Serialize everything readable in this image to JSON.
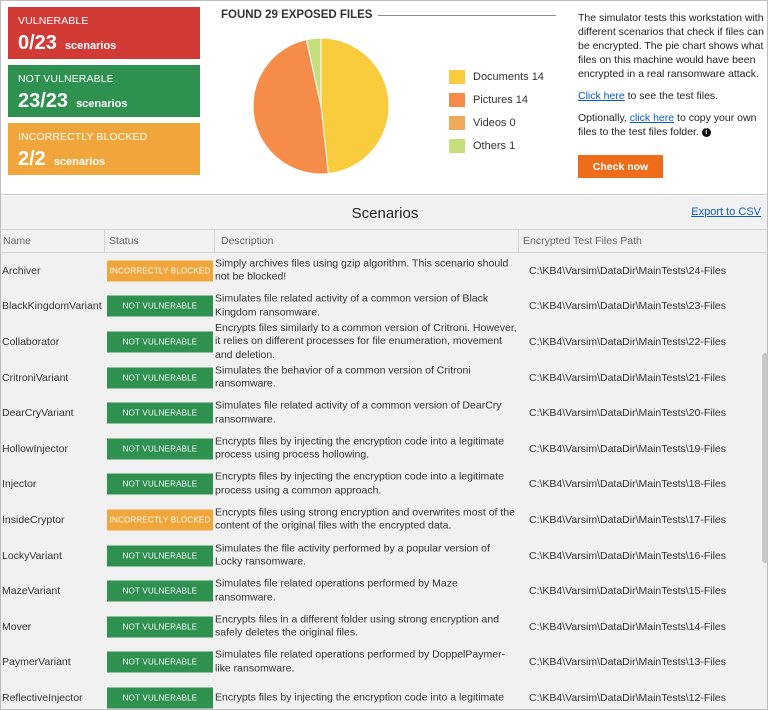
{
  "colors": {
    "vulnerable": "#d23a36",
    "not_vulnerable": "#2e9150",
    "incorrectly_blocked": "#f0a63a",
    "accent_orange": "#ef6c1b",
    "link": "#0a5cc7"
  },
  "summary": {
    "vulnerable": {
      "title": "VULNERABLE",
      "count": "0/23",
      "unit": "scenarios"
    },
    "not_vulnerable": {
      "title": "NOT VULNERABLE",
      "count": "23/23",
      "unit": "scenarios"
    },
    "incorrectly_blocked": {
      "title": "INCORRECTLY BLOCKED",
      "count": "2/2",
      "unit": "scenarios"
    }
  },
  "files_heading": "FOUND 29 EXPOSED FILES",
  "chart_data": {
    "type": "pie",
    "title": "FOUND 29 EXPOSED FILES",
    "slices": [
      {
        "label": "Documents 14",
        "value": 14,
        "color": "#f9cc3e"
      },
      {
        "label": "Pictures 14",
        "value": 14,
        "color": "#f58c4a"
      },
      {
        "label": "Videos 0",
        "value": 0,
        "color": "#f0a85a"
      },
      {
        "label": "Others 1",
        "value": 1,
        "color": "#c5de7c"
      }
    ],
    "legend": "right"
  },
  "info": {
    "description": "The simulator tests this workstation with different scenarios that check if files can be encrypted. The pie chart shows what files on this machine would have been encrypted in a real ransomware attack.",
    "click_here_1": "Click here",
    "see_test_files": " to see the test files.",
    "optionally": "Optionally, ",
    "click_here_2": "click here",
    "copy_files": " to copy your own files to the test files folder.",
    "info_icon": "info-icon",
    "check_now": "Check now"
  },
  "scenarios": {
    "title": "Scenarios",
    "export_label": "Export to CSV",
    "columns": {
      "name": "Name",
      "status": "Status",
      "description": "Description",
      "path": "Encrypted Test Files Path"
    },
    "rows": [
      {
        "name": "Archiver",
        "status": "INCORRECTLY BLOCKED",
        "status_type": "incorrectly_blocked",
        "description": "Simply archives files using gzip algorithm. This scenario should not be blocked!",
        "path": "C:\\KB4\\Varsim\\DataDir\\MainTests\\24-Files"
      },
      {
        "name": "BlackKingdomVariant",
        "status": "NOT VULNERABLE",
        "status_type": "not_vulnerable",
        "description": "Simulates file related activity of a common version of Black Kingdom ransomware.",
        "path": "C:\\KB4\\Varsim\\DataDir\\MainTests\\23-Files"
      },
      {
        "name": "Collaborator",
        "status": "NOT VULNERABLE",
        "status_type": "not_vulnerable",
        "description": "Encrypts files similarly to a common version of Critroni. However, it relies on different processes for file enumeration, movement and deletion.",
        "path": "C:\\KB4\\Varsim\\DataDir\\MainTests\\22-Files"
      },
      {
        "name": "CritroniVariant",
        "status": "NOT VULNERABLE",
        "status_type": "not_vulnerable",
        "description": "Simulates the behavior of a common version of Critroni ransomware.",
        "path": "C:\\KB4\\Varsim\\DataDir\\MainTests\\21-Files"
      },
      {
        "name": "DearCryVariant",
        "status": "NOT VULNERABLE",
        "status_type": "not_vulnerable",
        "description": "Simulates file related activity of a common version of DearCry ransomware.",
        "path": "C:\\KB4\\Varsim\\DataDir\\MainTests\\20-Files"
      },
      {
        "name": "HollowInjector",
        "status": "NOT VULNERABLE",
        "status_type": "not_vulnerable",
        "description": "Encrypts files by injecting the encryption code into a legitimate process using process hollowing.",
        "path": "C:\\KB4\\Varsim\\DataDir\\MainTests\\19-Files"
      },
      {
        "name": "Injector",
        "status": "NOT VULNERABLE",
        "status_type": "not_vulnerable",
        "description": "Encrypts files by injecting the encryption code into a legitimate process using a common approach.",
        "path": "C:\\KB4\\Varsim\\DataDir\\MainTests\\18-Files"
      },
      {
        "name": "InsideCryptor",
        "status": "INCORRECTLY BLOCKED",
        "status_type": "incorrectly_blocked",
        "description": "Encrypts files using strong encryption and overwrites most of the content of the original files with the encrypted data.",
        "path": "C:\\KB4\\Varsim\\DataDir\\MainTests\\17-Files"
      },
      {
        "name": "LockyVariant",
        "status": "NOT VULNERABLE",
        "status_type": "not_vulnerable",
        "description": "Simulates the file activity performed by a popular version of Locky ransomware.",
        "path": "C:\\KB4\\Varsim\\DataDir\\MainTests\\16-Files"
      },
      {
        "name": "MazeVariant",
        "status": "NOT VULNERABLE",
        "status_type": "not_vulnerable",
        "description": "Simulates file related operations performed by Maze ransomware.",
        "path": "C:\\KB4\\Varsim\\DataDir\\MainTests\\15-Files"
      },
      {
        "name": "Mover",
        "status": "NOT VULNERABLE",
        "status_type": "not_vulnerable",
        "description": "Encrypts files in a different folder using strong encryption and safely deletes the original files.",
        "path": "C:\\KB4\\Varsim\\DataDir\\MainTests\\14-Files"
      },
      {
        "name": "PaymerVariant",
        "status": "NOT VULNERABLE",
        "status_type": "not_vulnerable",
        "description": "Simulates file related operations performed by DoppelPaymer-like ransomware.",
        "path": "C:\\KB4\\Varsim\\DataDir\\MainTests\\13-Files"
      },
      {
        "name": "ReflectiveInjector",
        "status": "NOT VULNERABLE",
        "status_type": "not_vulnerable",
        "description": "Encrypts files by injecting the encryption code into a legitimate",
        "path": "C:\\KB4\\Varsim\\DataDir\\MainTests\\12-Files"
      }
    ]
  }
}
